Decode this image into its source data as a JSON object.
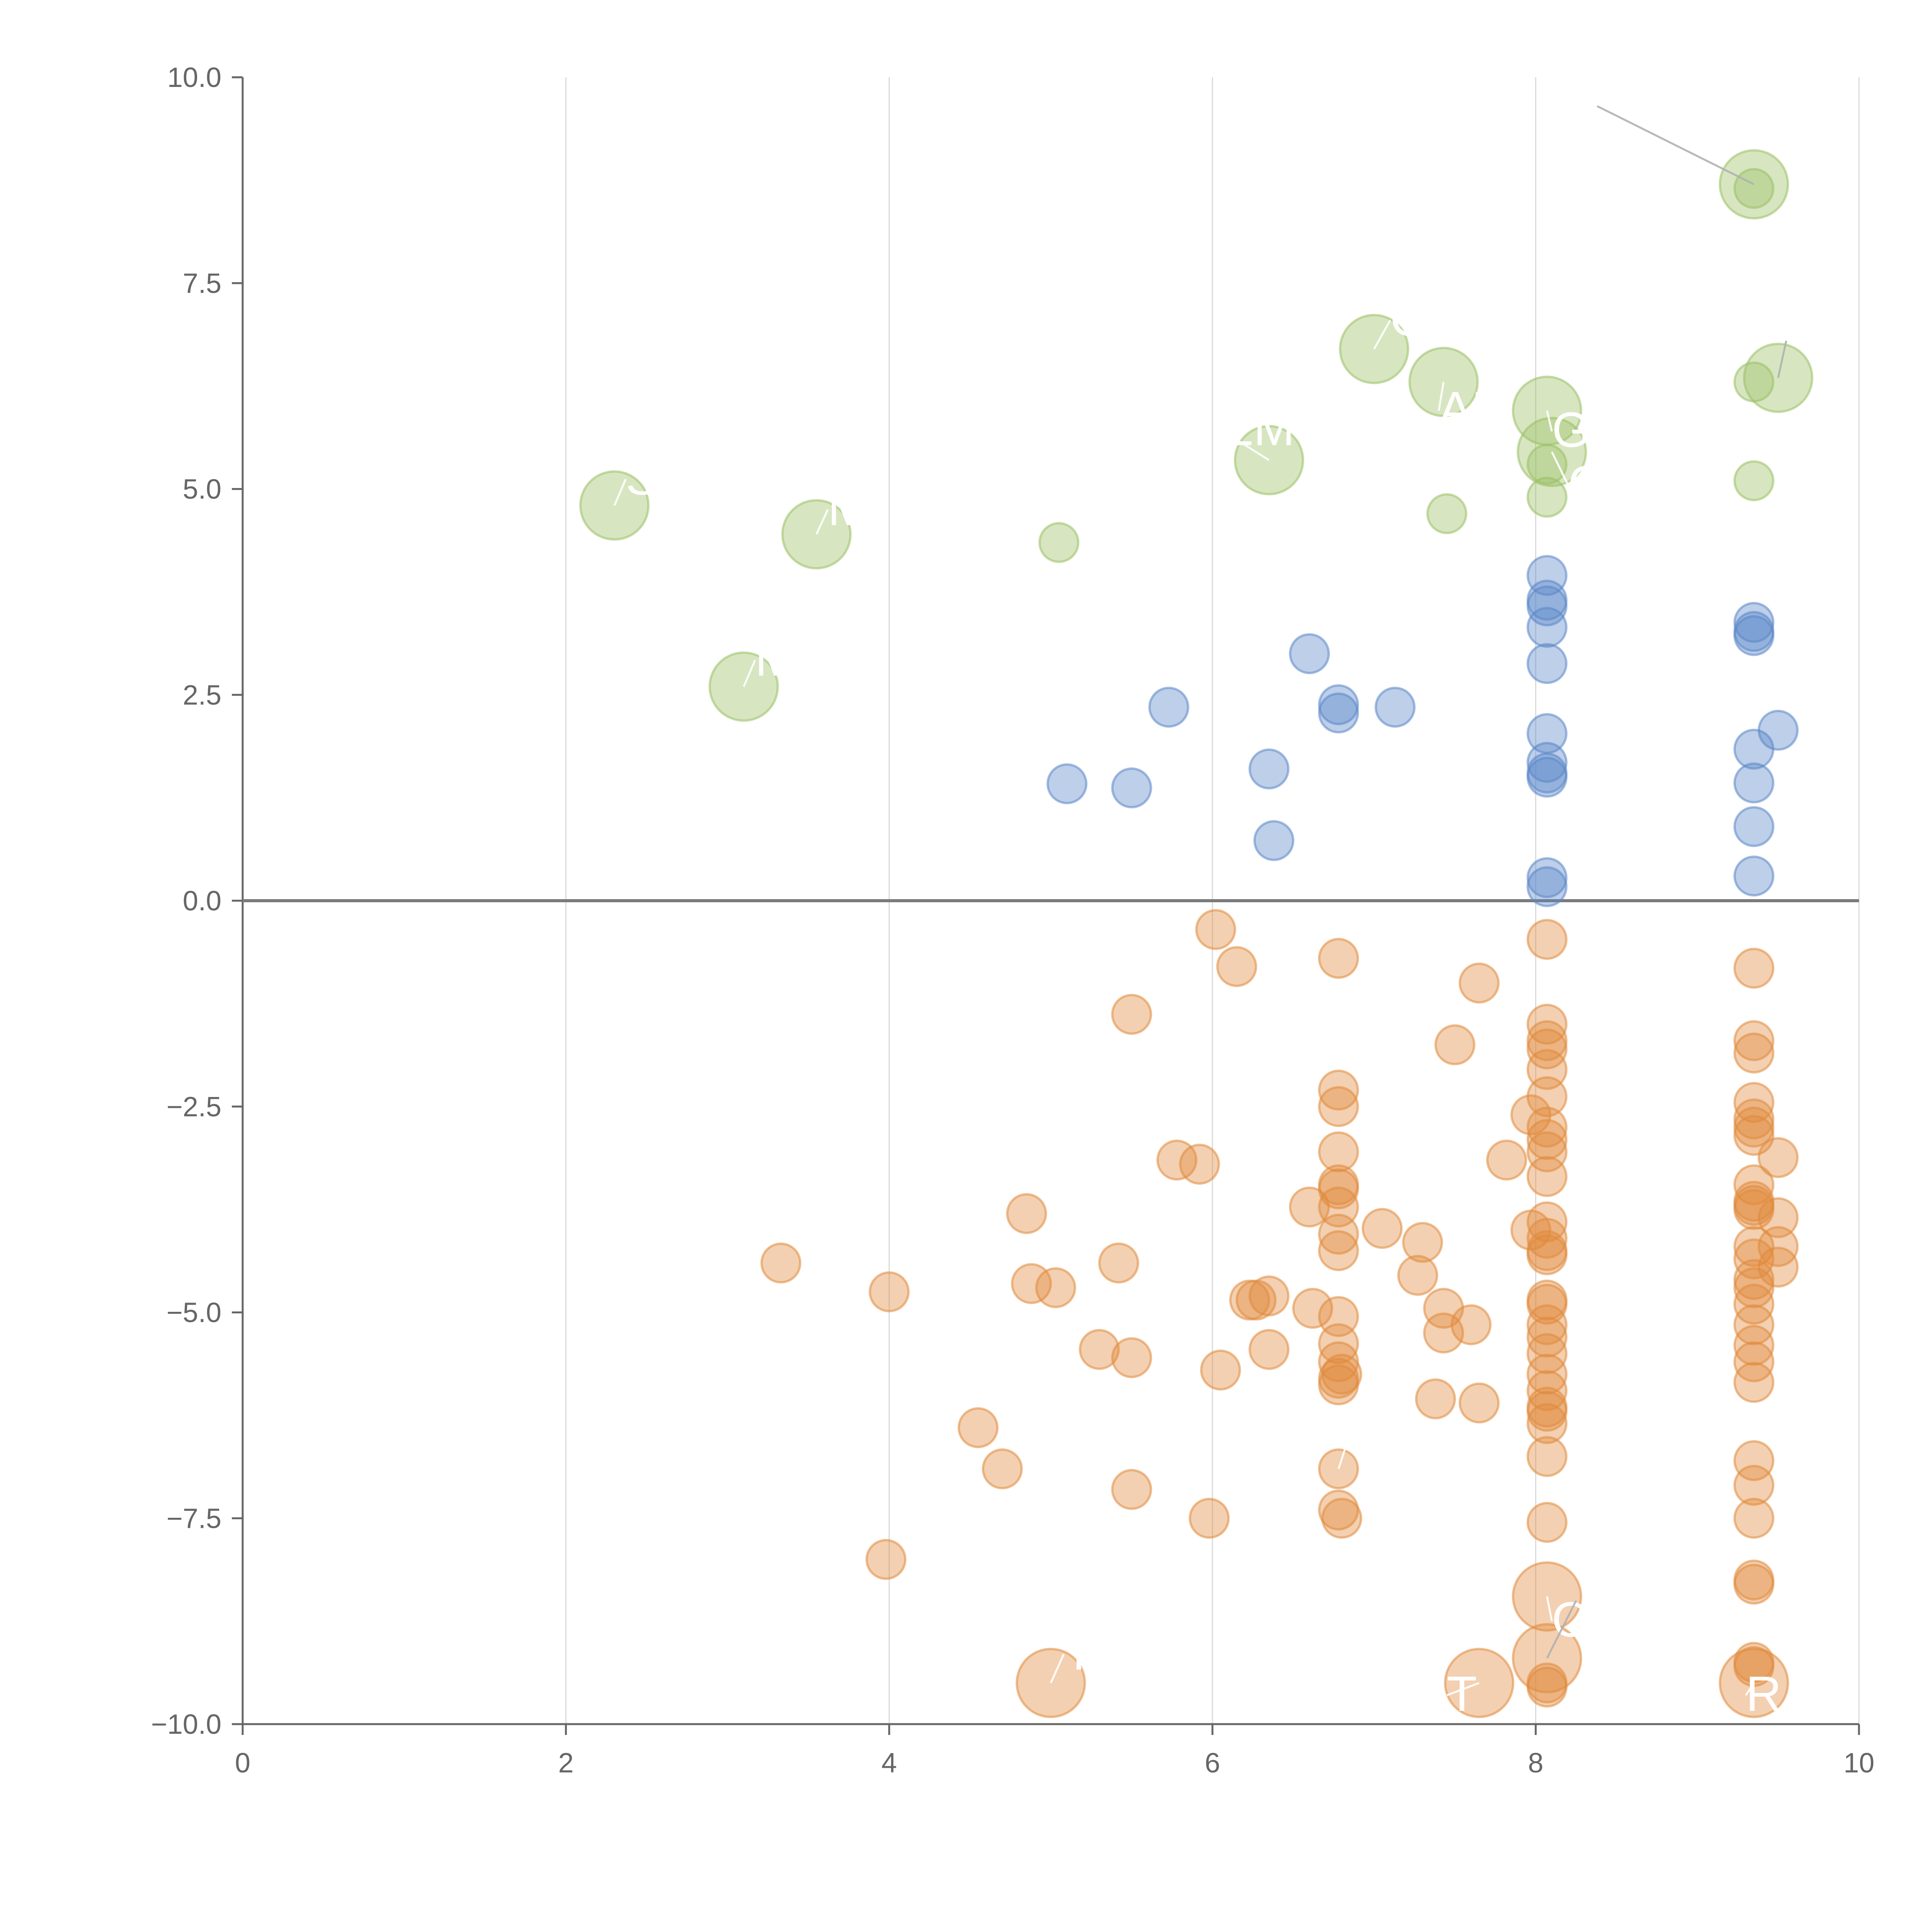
{
  "chart_data": {
    "type": "scatter",
    "title": "",
    "xlabel": "",
    "ylabel": "",
    "xlim": [
      0,
      10
    ],
    "ylim": [
      -10,
      10
    ],
    "x_ticks": [
      "0",
      "2",
      "4",
      "6",
      "8",
      "10"
    ],
    "y_ticks": [
      "−10.0",
      "−7.5",
      "−5.0",
      "−2.5",
      "0.0",
      "2.5",
      "5.0",
      "7.5",
      "10.0"
    ],
    "x_tick_values": [
      0,
      2,
      4,
      6,
      8,
      10
    ],
    "y_tick_values": [
      -10,
      -7.5,
      -5,
      -2.5,
      0,
      2.5,
      5,
      7.5,
      10
    ],
    "grid": "vertical",
    "zero_line": true,
    "colors": {
      "green": "#9bc064",
      "blue": "#5b87c8",
      "orange": "#e08a3c",
      "axis": "#666666",
      "grid": "#d9d9d9"
    },
    "series": [
      {
        "color": "green",
        "points": [
          [
            2.3,
            4.8,
            "large"
          ],
          [
            3.1,
            2.6,
            "large"
          ],
          [
            3.55,
            4.45,
            "large"
          ],
          [
            5.05,
            4.35,
            "small"
          ],
          [
            6.35,
            5.35,
            "large"
          ],
          [
            7.0,
            6.7,
            "large"
          ],
          [
            7.43,
            6.3,
            "large"
          ],
          [
            7.45,
            4.7,
            "small"
          ],
          [
            8.07,
            5.95,
            "large"
          ],
          [
            8.1,
            5.45,
            "large"
          ],
          [
            8.07,
            5.3,
            "small"
          ],
          [
            8.07,
            4.9,
            "small"
          ],
          [
            9.35,
            8.7,
            "large"
          ],
          [
            9.35,
            8.65,
            "small"
          ],
          [
            9.5,
            6.35,
            "large"
          ],
          [
            9.35,
            6.3,
            "small"
          ],
          [
            9.35,
            5.1,
            "small"
          ]
        ]
      },
      {
        "color": "blue",
        "points": [
          [
            5.1,
            1.42
          ],
          [
            5.5,
            1.37
          ],
          [
            5.73,
            2.35
          ],
          [
            6.35,
            1.6
          ],
          [
            6.38,
            0.73
          ],
          [
            6.6,
            3.0
          ],
          [
            6.78,
            2.38
          ],
          [
            6.78,
            2.28
          ],
          [
            7.13,
            2.35
          ],
          [
            8.07,
            3.95
          ],
          [
            8.07,
            3.65
          ],
          [
            8.07,
            3.58
          ],
          [
            8.07,
            3.32
          ],
          [
            8.07,
            2.88
          ],
          [
            8.07,
            2.03
          ],
          [
            8.07,
            1.68
          ],
          [
            8.07,
            1.55
          ],
          [
            8.07,
            1.5
          ],
          [
            8.07,
            0.28
          ],
          [
            8.07,
            0.17
          ],
          [
            9.35,
            3.38
          ],
          [
            9.35,
            3.27
          ],
          [
            9.35,
            3.22
          ],
          [
            9.35,
            1.84
          ],
          [
            9.35,
            1.43
          ],
          [
            9.35,
            0.9
          ],
          [
            9.35,
            0.3
          ],
          [
            9.5,
            2.07
          ]
        ]
      },
      {
        "color": "orange",
        "points": [
          [
            3.33,
            -4.4,
            "small"
          ],
          [
            4.0,
            -4.75,
            "small"
          ],
          [
            3.98,
            -8.0,
            "small"
          ],
          [
            4.55,
            -6.4,
            "small"
          ],
          [
            4.7,
            -6.9,
            "small"
          ],
          [
            4.85,
            -3.8,
            "small"
          ],
          [
            4.88,
            -4.65,
            "small"
          ],
          [
            5.03,
            -4.7,
            "small"
          ],
          [
            5.3,
            -5.45,
            "small"
          ],
          [
            5.42,
            -4.4,
            "small"
          ],
          [
            5.5,
            -5.55,
            "small"
          ],
          [
            5.5,
            -1.38,
            "small"
          ],
          [
            5.5,
            -7.15,
            "small"
          ],
          [
            5.78,
            -3.15,
            "small"
          ],
          [
            5.92,
            -3.2,
            "small"
          ],
          [
            5.98,
            -7.5,
            "small"
          ],
          [
            6.02,
            -0.35,
            "small"
          ],
          [
            6.05,
            -5.7,
            "small"
          ],
          [
            6.15,
            -0.8,
            "small"
          ],
          [
            6.23,
            -4.85,
            "small"
          ],
          [
            6.27,
            -4.85,
            "small"
          ],
          [
            6.35,
            -5.45,
            "small"
          ],
          [
            6.35,
            -4.8,
            "small"
          ],
          [
            6.6,
            -3.72,
            "small"
          ],
          [
            6.62,
            -4.95,
            "small"
          ],
          [
            6.78,
            -0.7,
            "small"
          ],
          [
            6.78,
            -2.3,
            "small"
          ],
          [
            6.78,
            -2.5,
            "small"
          ],
          [
            6.78,
            -3.05,
            "small"
          ],
          [
            6.78,
            -3.45,
            "small"
          ],
          [
            6.78,
            -3.5,
            "small"
          ],
          [
            6.78,
            -3.72,
            "small"
          ],
          [
            6.78,
            -4.05,
            "small"
          ],
          [
            6.78,
            -4.25,
            "small"
          ],
          [
            6.78,
            -5.05,
            "small"
          ],
          [
            6.78,
            -5.38,
            "small"
          ],
          [
            6.78,
            -5.6,
            "small"
          ],
          [
            6.78,
            -5.8,
            "small"
          ],
          [
            6.78,
            -5.88,
            "small"
          ],
          [
            6.8,
            -5.75,
            "small"
          ],
          [
            6.78,
            -6.9,
            "small"
          ],
          [
            6.78,
            -7.4,
            "small"
          ],
          [
            6.8,
            -7.5,
            "small"
          ],
          [
            7.05,
            -3.98,
            "small"
          ],
          [
            7.27,
            -4.55,
            "small"
          ],
          [
            7.3,
            -4.15,
            "small"
          ],
          [
            7.38,
            -6.05,
            "small"
          ],
          [
            7.43,
            -5.25,
            "small"
          ],
          [
            7.43,
            -4.95,
            "small"
          ],
          [
            7.5,
            -1.75,
            "small"
          ],
          [
            7.6,
            -5.15,
            "small"
          ],
          [
            7.65,
            -6.1,
            "small"
          ],
          [
            7.65,
            -1.0,
            "small"
          ],
          [
            7.82,
            -3.15,
            "small"
          ],
          [
            7.97,
            -2.6,
            "small"
          ],
          [
            7.97,
            -4.0,
            "small"
          ],
          [
            8.07,
            -0.47,
            "small"
          ],
          [
            8.07,
            -1.5,
            "small"
          ],
          [
            8.07,
            -1.7,
            "small"
          ],
          [
            8.07,
            -1.8,
            "small"
          ],
          [
            8.07,
            -2.05,
            "small"
          ],
          [
            8.07,
            -2.38,
            "small"
          ],
          [
            8.07,
            -2.75,
            "small"
          ],
          [
            8.07,
            -2.9,
            "small"
          ],
          [
            8.07,
            -3.05,
            "small"
          ],
          [
            8.07,
            -3.35,
            "small"
          ],
          [
            8.07,
            -3.9,
            "small"
          ],
          [
            8.07,
            -4.1,
            "small"
          ],
          [
            8.07,
            -4.25,
            "small"
          ],
          [
            8.07,
            -4.3,
            "small"
          ],
          [
            8.07,
            -4.85,
            "small"
          ],
          [
            8.07,
            -4.9,
            "small"
          ],
          [
            8.07,
            -5.15,
            "small"
          ],
          [
            8.07,
            -5.3,
            "small"
          ],
          [
            8.07,
            -5.5,
            "small"
          ],
          [
            8.07,
            -5.75,
            "small"
          ],
          [
            8.07,
            -5.95,
            "small"
          ],
          [
            8.07,
            -6.15,
            "small"
          ],
          [
            8.07,
            -6.2,
            "small"
          ],
          [
            8.07,
            -6.35,
            "small"
          ],
          [
            8.07,
            -6.75,
            "small"
          ],
          [
            8.07,
            -7.55,
            "small"
          ],
          [
            8.07,
            -8.45,
            "large"
          ],
          [
            8.07,
            -9.2,
            "large"
          ],
          [
            8.07,
            -9.5,
            "small"
          ],
          [
            8.07,
            -9.55,
            "small"
          ],
          [
            5.0,
            -9.5,
            "large"
          ],
          [
            7.65,
            -9.5,
            "large"
          ],
          [
            9.35,
            -0.82,
            "small"
          ],
          [
            9.35,
            -1.7,
            "small"
          ],
          [
            9.35,
            -1.85,
            "small"
          ],
          [
            9.35,
            -2.45,
            "small"
          ],
          [
            9.35,
            -2.65,
            "small"
          ],
          [
            9.35,
            -2.75,
            "small"
          ],
          [
            9.35,
            -2.85,
            "small"
          ],
          [
            9.35,
            -3.45,
            "small"
          ],
          [
            9.35,
            -3.65,
            "small"
          ],
          [
            9.35,
            -3.7,
            "small"
          ],
          [
            9.35,
            -3.75,
            "small"
          ],
          [
            9.35,
            -4.2,
            "small"
          ],
          [
            9.35,
            -4.35,
            "small"
          ],
          [
            9.35,
            -4.6,
            "small"
          ],
          [
            9.35,
            -4.7,
            "small"
          ],
          [
            9.35,
            -4.9,
            "small"
          ],
          [
            9.35,
            -5.15,
            "small"
          ],
          [
            9.35,
            -5.4,
            "small"
          ],
          [
            9.35,
            -5.6,
            "small"
          ],
          [
            9.35,
            -5.85,
            "small"
          ],
          [
            9.35,
            -6.8,
            "small"
          ],
          [
            9.35,
            -7.1,
            "small"
          ],
          [
            9.35,
            -7.5,
            "small"
          ],
          [
            9.35,
            -8.25,
            "small"
          ],
          [
            9.35,
            -8.3,
            "small"
          ],
          [
            9.35,
            -9.25,
            "small"
          ],
          [
            9.35,
            -9.3,
            "small"
          ],
          [
            9.35,
            -9.5,
            "large"
          ],
          [
            9.5,
            -3.12,
            "small"
          ],
          [
            9.5,
            -3.85,
            "small"
          ],
          [
            9.5,
            -4.2,
            "small"
          ],
          [
            9.5,
            -4.45,
            "small"
          ]
        ]
      }
    ],
    "annotations": [
      {
        "text": "S",
        "x": 2.3,
        "y": 4.8,
        "tx": 2.37,
        "ty": 5.12
      },
      {
        "text": "M",
        "x": 3.1,
        "y": 2.6,
        "tx": 3.17,
        "ty": 2.92
      },
      {
        "text": "M",
        "x": 3.55,
        "y": 4.45,
        "tx": 3.62,
        "ty": 4.75
      },
      {
        "text": "EM",
        "x": 6.35,
        "y": 5.35,
        "tx": 6.05,
        "ty": 5.72
      },
      {
        "text": "O",
        "x": 7.0,
        "y": 6.7,
        "tx": 7.1,
        "ty": 7.05
      },
      {
        "text": "AM",
        "x": 7.43,
        "y": 6.3,
        "tx": 7.4,
        "ty": 5.95
      },
      {
        "text": "GHS",
        "x": 8.07,
        "y": 5.95,
        "tx": 8.1,
        "ty": 5.7
      },
      {
        "text": "C",
        "x": 8.1,
        "y": 5.45,
        "tx": 8.2,
        "ty": 5.05
      },
      {
        "text": "",
        "x": 9.35,
        "y": 8.7,
        "tx": 8.38,
        "ty": 9.65
      },
      {
        "text": "",
        "x": 9.5,
        "y": 6.35,
        "tx": 9.55,
        "ty": 6.8
      },
      {
        "text": "T",
        "x": 6.78,
        "y": -6.9,
        "tx": 6.83,
        "ty": -6.6
      },
      {
        "text": "ON",
        "x": 8.07,
        "y": -8.45,
        "tx": 8.1,
        "ty": -8.75
      },
      {
        "text": "",
        "x": 8.07,
        "y": -9.2,
        "tx": 8.25,
        "ty": -8.5
      },
      {
        "text": "T",
        "x": 5.0,
        "y": -9.5,
        "tx": 5.08,
        "ty": -9.15
      },
      {
        "text": "T",
        "x": 7.65,
        "y": -9.5,
        "tx": 7.45,
        "ty": -9.65
      },
      {
        "text": "R",
        "x": 9.35,
        "y": -9.5,
        "tx": 9.3,
        "ty": -9.65
      }
    ]
  }
}
